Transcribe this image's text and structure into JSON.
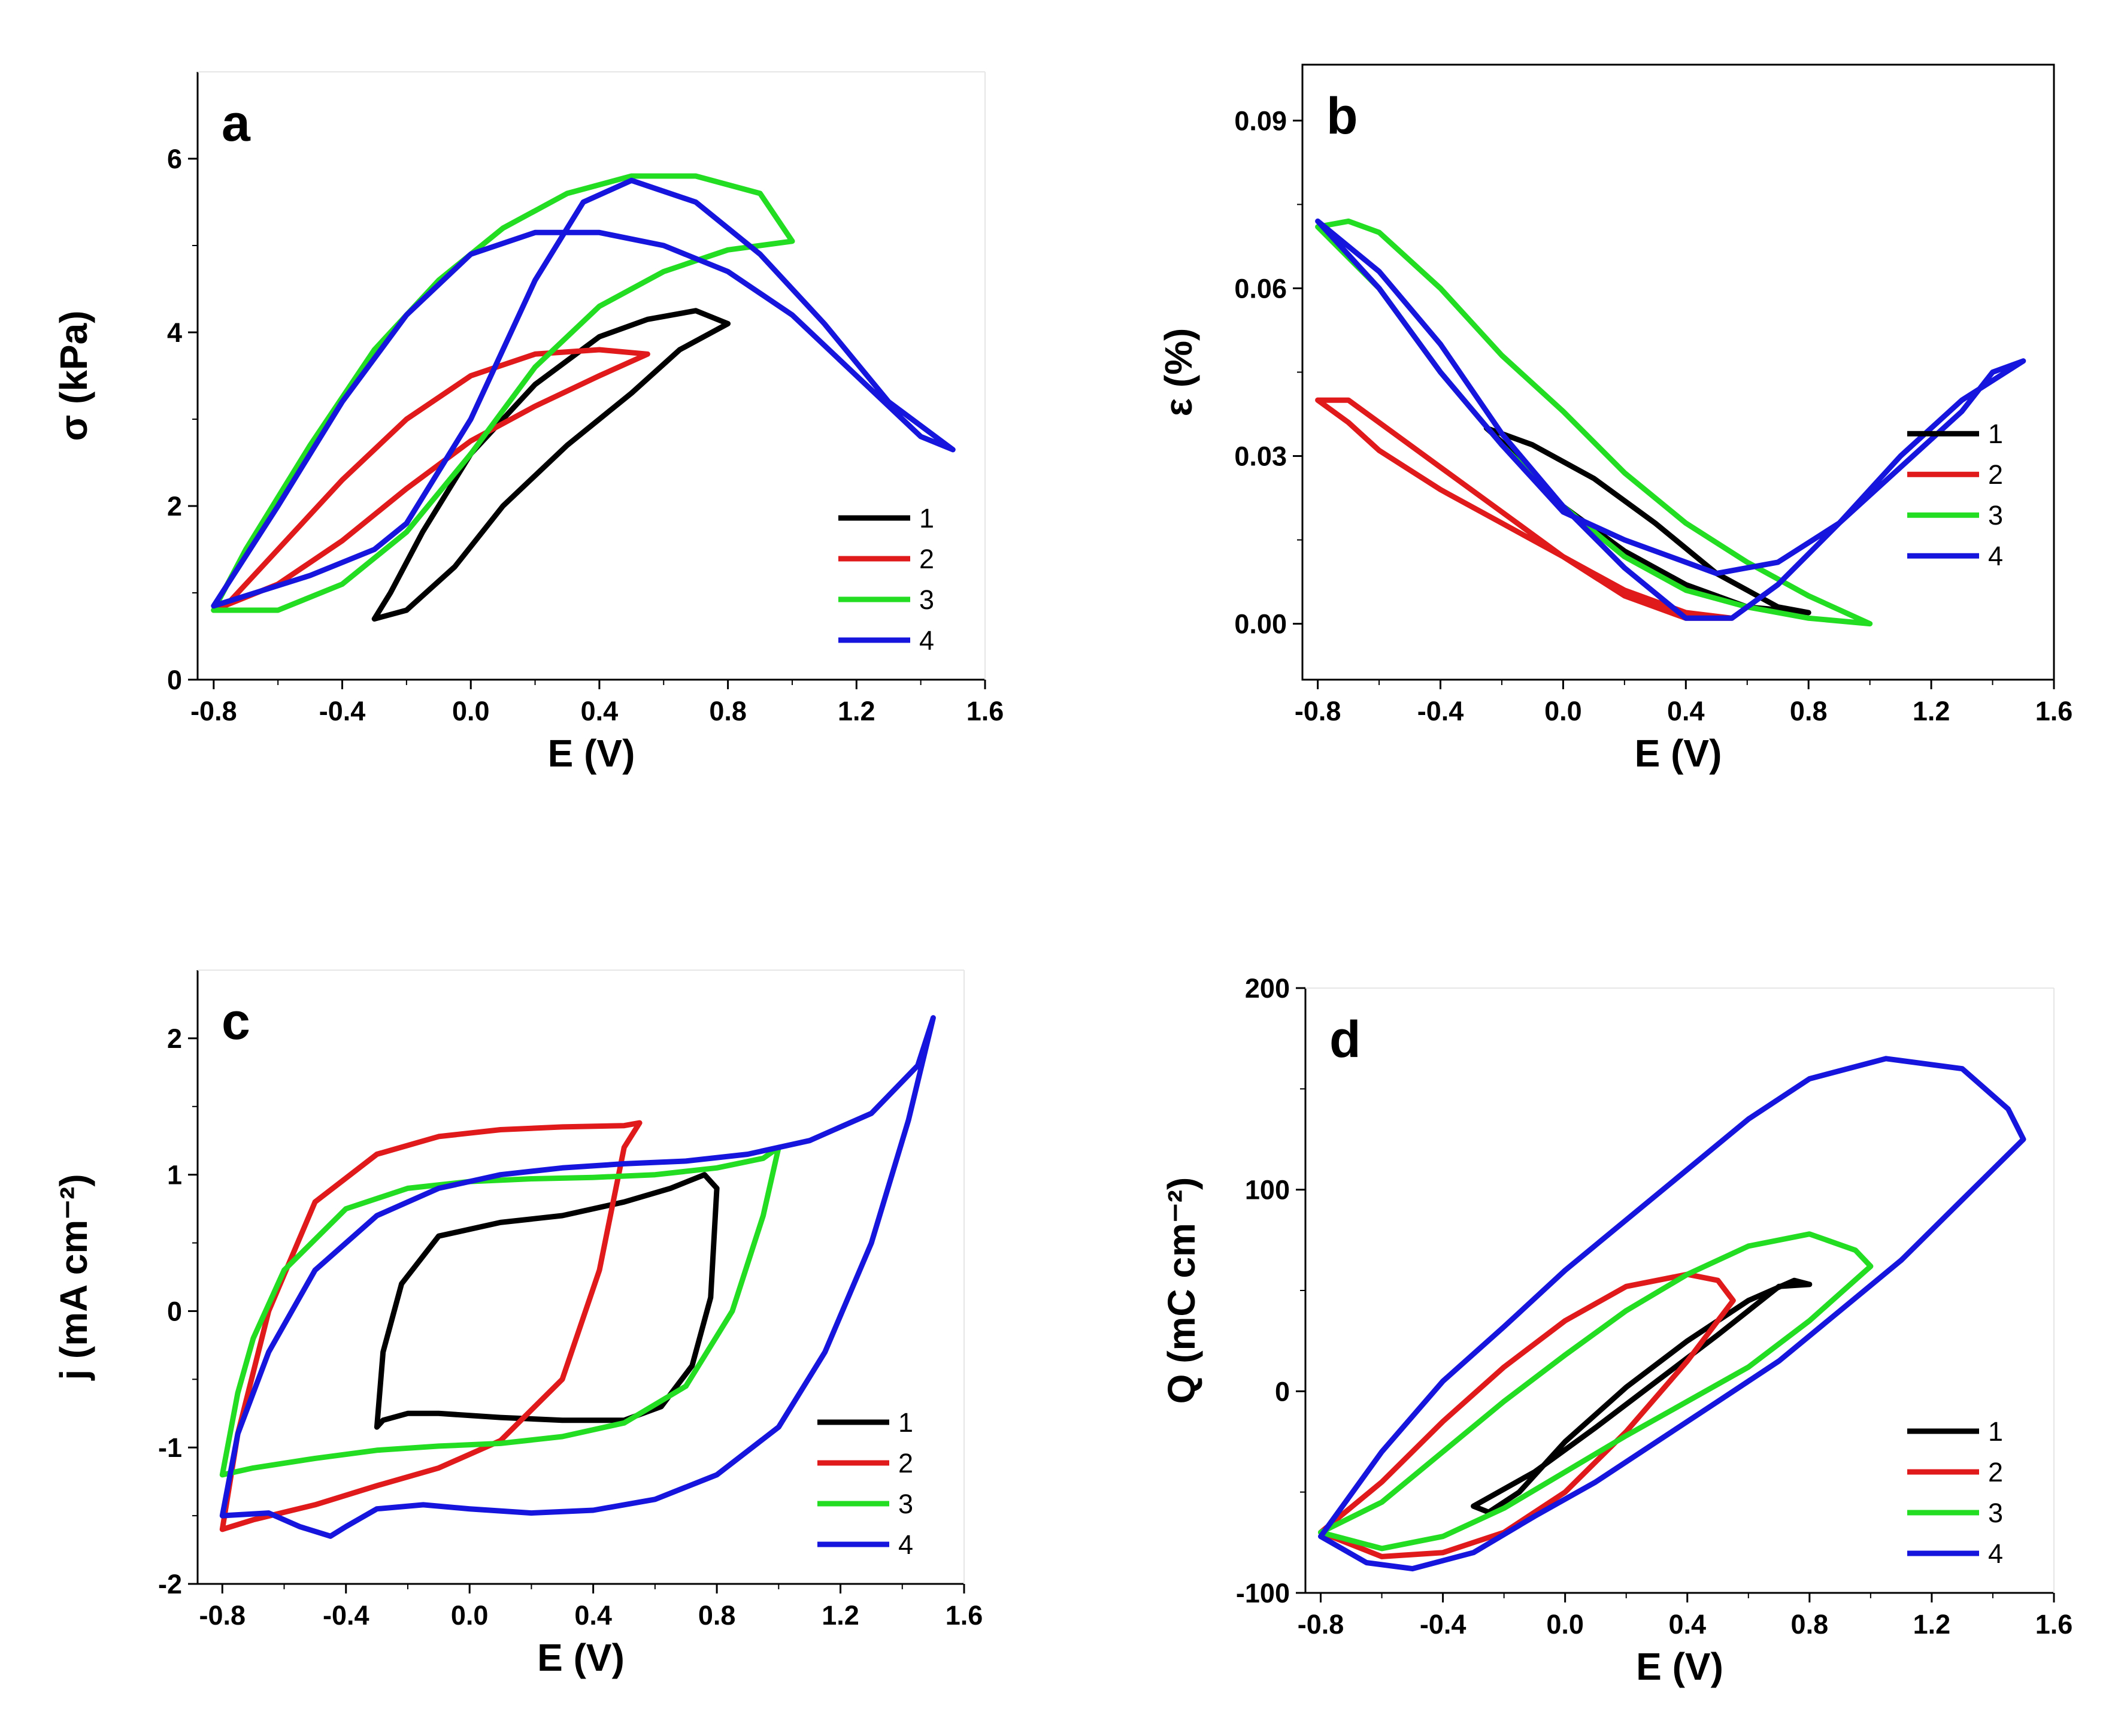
{
  "chart_data": [
    {
      "panel": "a",
      "type": "line",
      "xlabel": "E (V)",
      "ylabel": "σ (kPa)",
      "xlim": [
        -0.85,
        1.6
      ],
      "ylim": [
        0,
        7
      ],
      "xticks": [
        -0.8,
        -0.4,
        0.0,
        0.4,
        0.8,
        1.2,
        1.6
      ],
      "xtick_labels": [
        "-0.8",
        "-0.4",
        "0.0",
        "0.4",
        "0.8",
        "1.2",
        "1.6"
      ],
      "yticks": [
        0,
        2,
        4,
        6
      ],
      "ytick_labels": [
        "0",
        "2",
        "4",
        "6"
      ],
      "frame": "left-bottom",
      "legend": {
        "position": "bottom-right",
        "entries": [
          "1",
          "2",
          "3",
          "4"
        ]
      },
      "series": [
        {
          "name": "1",
          "color": "#000000",
          "x": [
            -0.3,
            -0.2,
            -0.05,
            0.1,
            0.3,
            0.5,
            0.65,
            0.8,
            0.7,
            0.55,
            0.4,
            0.2,
            0.0,
            -0.15,
            -0.25,
            -0.3
          ],
          "y": [
            0.7,
            0.8,
            1.3,
            2.0,
            2.7,
            3.3,
            3.8,
            4.1,
            4.25,
            4.15,
            3.95,
            3.4,
            2.6,
            1.7,
            1.0,
            0.7
          ]
        },
        {
          "name": "2",
          "color": "#e0191b",
          "x": [
            -0.8,
            -0.6,
            -0.4,
            -0.2,
            0.0,
            0.2,
            0.4,
            0.55,
            0.4,
            0.2,
            0.0,
            -0.2,
            -0.4,
            -0.6,
            -0.75,
            -0.8
          ],
          "y": [
            0.8,
            1.1,
            1.6,
            2.2,
            2.75,
            3.15,
            3.5,
            3.75,
            3.8,
            3.75,
            3.5,
            3.0,
            2.3,
            1.5,
            0.9,
            0.8
          ]
        },
        {
          "name": "3",
          "color": "#22dd22",
          "x": [
            -0.8,
            -0.6,
            -0.4,
            -0.2,
            0.0,
            0.2,
            0.4,
            0.6,
            0.8,
            1.0,
            0.9,
            0.7,
            0.5,
            0.3,
            0.1,
            -0.1,
            -0.3,
            -0.5,
            -0.7,
            -0.8
          ],
          "y": [
            0.8,
            0.8,
            1.1,
            1.7,
            2.6,
            3.6,
            4.3,
            4.7,
            4.95,
            5.05,
            5.6,
            5.8,
            5.8,
            5.6,
            5.2,
            4.6,
            3.8,
            2.7,
            1.5,
            0.8
          ]
        },
        {
          "name": "4",
          "color": "#1515dd",
          "x": [
            -0.8,
            -0.5,
            -0.3,
            -0.2,
            0.0,
            0.2,
            0.35,
            0.5,
            0.7,
            0.9,
            1.1,
            1.3,
            1.5,
            1.4,
            1.2,
            1.0,
            0.8,
            0.6,
            0.4,
            0.2,
            0.0,
            -0.2,
            -0.4,
            -0.6,
            -0.8
          ],
          "y": [
            0.85,
            1.2,
            1.5,
            1.8,
            3.0,
            4.6,
            5.5,
            5.75,
            5.5,
            4.9,
            4.1,
            3.2,
            2.65,
            2.8,
            3.5,
            4.2,
            4.7,
            5.0,
            5.15,
            5.15,
            4.9,
            4.2,
            3.2,
            2.0,
            0.85
          ]
        }
      ]
    },
    {
      "panel": "b",
      "type": "line",
      "xlabel": "E (V)",
      "ylabel": "ε (%)",
      "xlim": [
        -0.85,
        1.6
      ],
      "ylim": [
        -0.01,
        0.1
      ],
      "xticks": [
        -0.8,
        -0.4,
        0.0,
        0.4,
        0.8,
        1.2,
        1.6
      ],
      "xtick_labels": [
        "-0.8",
        "-0.4",
        "0.0",
        "0.4",
        "0.8",
        "1.2",
        "1.6"
      ],
      "yticks": [
        0.0,
        0.03,
        0.06,
        0.09
      ],
      "ytick_labels": [
        "0.00",
        "0.03",
        "0.06",
        "0.09"
      ],
      "frame": "box",
      "legend": {
        "position": "right",
        "entries": [
          "1",
          "2",
          "3",
          "4"
        ]
      },
      "series": [
        {
          "name": "1",
          "color": "#000000",
          "x": [
            -0.25,
            -0.1,
            0.1,
            0.3,
            0.5,
            0.7,
            0.8,
            0.6,
            0.4,
            0.2,
            0.0,
            -0.15,
            -0.25
          ],
          "y": [
            0.035,
            0.032,
            0.026,
            0.018,
            0.009,
            0.003,
            0.002,
            0.003,
            0.007,
            0.013,
            0.021,
            0.03,
            0.035
          ]
        },
        {
          "name": "2",
          "color": "#e0191b",
          "x": [
            -0.8,
            -0.7,
            -0.6,
            -0.4,
            -0.2,
            0.0,
            0.2,
            0.4,
            0.55,
            0.4,
            0.2,
            0.0,
            -0.2,
            -0.4,
            -0.6,
            -0.7,
            -0.8
          ],
          "y": [
            0.04,
            0.04,
            0.036,
            0.028,
            0.02,
            0.012,
            0.005,
            0.001,
            0.001,
            0.002,
            0.006,
            0.012,
            0.018,
            0.024,
            0.031,
            0.036,
            0.04
          ]
        },
        {
          "name": "3",
          "color": "#22dd22",
          "x": [
            -0.8,
            -0.6,
            -0.4,
            -0.2,
            0.0,
            0.2,
            0.4,
            0.6,
            0.8,
            1.0,
            0.8,
            0.6,
            0.4,
            0.2,
            0.0,
            -0.2,
            -0.4,
            -0.6,
            -0.7,
            -0.8
          ],
          "y": [
            0.071,
            0.06,
            0.045,
            0.032,
            0.021,
            0.012,
            0.006,
            0.003,
            0.001,
            0.0,
            0.005,
            0.011,
            0.018,
            0.027,
            0.038,
            0.048,
            0.06,
            0.07,
            0.072,
            0.071
          ]
        },
        {
          "name": "4",
          "color": "#1515dd",
          "x": [
            -0.8,
            -0.6,
            -0.4,
            -0.2,
            -0.1,
            0.0,
            0.2,
            0.4,
            0.5,
            0.7,
            0.9,
            1.1,
            1.3,
            1.4,
            1.5,
            1.3,
            1.1,
            0.9,
            0.7,
            0.55,
            0.4,
            0.2,
            0.0,
            -0.2,
            -0.4,
            -0.6,
            -0.8
          ],
          "y": [
            0.072,
            0.06,
            0.045,
            0.032,
            0.026,
            0.02,
            0.015,
            0.011,
            0.009,
            0.011,
            0.018,
            0.028,
            0.038,
            0.045,
            0.047,
            0.04,
            0.03,
            0.018,
            0.007,
            0.001,
            0.001,
            0.01,
            0.021,
            0.034,
            0.05,
            0.063,
            0.072
          ]
        }
      ]
    },
    {
      "panel": "c",
      "type": "line",
      "xlabel": "E (V)",
      "ylabel": "j (mA cm⁻²)",
      "xlim": [
        -0.88,
        1.6
      ],
      "ylim": [
        -2,
        2.5
      ],
      "xticks": [
        -0.8,
        -0.4,
        0.0,
        0.4,
        0.8,
        1.2,
        1.6
      ],
      "xtick_labels": [
        "-0.8",
        "-0.4",
        "0.0",
        "0.4",
        "0.8",
        "1.2",
        "1.6"
      ],
      "yticks": [
        -2,
        -1,
        0,
        1,
        2
      ],
      "ytick_labels": [
        "-2",
        "-1",
        "0",
        "1",
        "2"
      ],
      "frame": "left-bottom",
      "legend": {
        "position": "bottom-right",
        "entries": [
          "1",
          "2",
          "3",
          "4"
        ]
      },
      "series": [
        {
          "name": "1",
          "color": "#000000",
          "x": [
            -0.3,
            -0.28,
            -0.22,
            -0.1,
            0.1,
            0.3,
            0.5,
            0.65,
            0.76,
            0.8,
            0.78,
            0.72,
            0.62,
            0.5,
            0.3,
            0.1,
            -0.1,
            -0.2,
            -0.28,
            -0.3
          ],
          "y": [
            -0.85,
            -0.3,
            0.2,
            0.55,
            0.65,
            0.7,
            0.8,
            0.9,
            1.0,
            0.9,
            0.1,
            -0.4,
            -0.7,
            -0.8,
            -0.8,
            -0.78,
            -0.75,
            -0.75,
            -0.8,
            -0.85
          ]
        },
        {
          "name": "2",
          "color": "#e0191b",
          "x": [
            -0.8,
            -0.75,
            -0.65,
            -0.5,
            -0.3,
            -0.1,
            0.1,
            0.3,
            0.5,
            0.55,
            0.5,
            0.42,
            0.3,
            0.1,
            -0.1,
            -0.3,
            -0.5,
            -0.7,
            -0.8
          ],
          "y": [
            -1.6,
            -0.9,
            0.0,
            0.8,
            1.15,
            1.28,
            1.33,
            1.35,
            1.36,
            1.38,
            1.2,
            0.3,
            -0.5,
            -0.95,
            -1.15,
            -1.28,
            -1.42,
            -1.53,
            -1.6
          ]
        },
        {
          "name": "3",
          "color": "#22dd22",
          "x": [
            -0.8,
            -0.75,
            -0.7,
            -0.6,
            -0.4,
            -0.2,
            0.0,
            0.2,
            0.4,
            0.6,
            0.8,
            0.95,
            1.0,
            0.95,
            0.85,
            0.7,
            0.5,
            0.3,
            0.1,
            -0.1,
            -0.3,
            -0.5,
            -0.7,
            -0.8
          ],
          "y": [
            -1.2,
            -0.6,
            -0.2,
            0.3,
            0.75,
            0.9,
            0.95,
            0.97,
            0.98,
            1.0,
            1.05,
            1.12,
            1.2,
            0.7,
            0.0,
            -0.55,
            -0.82,
            -0.92,
            -0.97,
            -0.99,
            -1.02,
            -1.08,
            -1.15,
            -1.2
          ]
        },
        {
          "name": "4",
          "color": "#1515dd",
          "x": [
            -0.8,
            -0.75,
            -0.65,
            -0.5,
            -0.3,
            -0.1,
            0.1,
            0.3,
            0.5,
            0.7,
            0.9,
            1.1,
            1.3,
            1.45,
            1.5,
            1.42,
            1.3,
            1.15,
            1.0,
            0.8,
            0.6,
            0.4,
            0.2,
            0.0,
            -0.15,
            -0.3,
            -0.4,
            -0.45,
            -0.55,
            -0.65,
            -0.8
          ],
          "y": [
            -1.5,
            -0.9,
            -0.3,
            0.3,
            0.7,
            0.9,
            1.0,
            1.05,
            1.08,
            1.1,
            1.15,
            1.25,
            1.45,
            1.8,
            2.15,
            1.4,
            0.5,
            -0.3,
            -0.85,
            -1.2,
            -1.38,
            -1.46,
            -1.48,
            -1.45,
            -1.42,
            -1.45,
            -1.58,
            -1.65,
            -1.58,
            -1.48,
            -1.5
          ]
        }
      ]
    },
    {
      "panel": "d",
      "type": "line",
      "xlabel": "E (V)",
      "ylabel": "Q (mC cm⁻²)",
      "xlim": [
        -0.85,
        1.6
      ],
      "ylim": [
        -100,
        200
      ],
      "xticks": [
        -0.8,
        -0.4,
        0.0,
        0.4,
        0.8,
        1.2,
        1.6
      ],
      "xtick_labels": [
        "-0.8",
        "-0.4",
        "0.0",
        "0.4",
        "0.8",
        "1.2",
        "1.6"
      ],
      "yticks": [
        -100,
        0,
        100,
        200
      ],
      "ytick_labels": [
        "-100",
        "0",
        "100",
        "200"
      ],
      "frame": "left-bottom",
      "legend": {
        "position": "bottom-right",
        "entries": [
          "1",
          "2",
          "3",
          "4"
        ]
      },
      "series": [
        {
          "name": "1",
          "color": "#000000",
          "x": [
            -0.3,
            -0.1,
            0.1,
            0.3,
            0.5,
            0.7,
            0.8,
            0.75,
            0.6,
            0.4,
            0.2,
            0.0,
            -0.15,
            -0.25,
            -0.3
          ],
          "y": [
            -57,
            -40,
            -18,
            5,
            28,
            52,
            53,
            55,
            45,
            25,
            2,
            -25,
            -50,
            -60,
            -57
          ]
        },
        {
          "name": "2",
          "color": "#e0191b",
          "x": [
            -0.8,
            -0.6,
            -0.4,
            -0.2,
            0.0,
            0.2,
            0.4,
            0.55,
            0.5,
            0.4,
            0.2,
            0.0,
            -0.2,
            -0.4,
            -0.6,
            -0.8
          ],
          "y": [
            -70,
            -82,
            -80,
            -70,
            -50,
            -20,
            15,
            45,
            55,
            58,
            52,
            35,
            12,
            -15,
            -45,
            -70
          ]
        },
        {
          "name": "3",
          "color": "#22dd22",
          "x": [
            -0.8,
            -0.6,
            -0.4,
            -0.2,
            0.0,
            0.2,
            0.4,
            0.6,
            0.8,
            1.0,
            0.95,
            0.8,
            0.6,
            0.4,
            0.2,
            0.0,
            -0.2,
            -0.4,
            -0.6,
            -0.8
          ],
          "y": [
            -70,
            -78,
            -72,
            -58,
            -40,
            -22,
            -5,
            12,
            35,
            62,
            70,
            78,
            72,
            58,
            40,
            18,
            -5,
            -30,
            -55,
            -70
          ]
        },
        {
          "name": "4",
          "color": "#1515dd",
          "x": [
            -0.8,
            -0.65,
            -0.5,
            -0.3,
            -0.1,
            0.1,
            0.3,
            0.5,
            0.7,
            0.9,
            1.1,
            1.3,
            1.5,
            1.45,
            1.3,
            1.05,
            0.8,
            0.6,
            0.4,
            0.2,
            0.0,
            -0.2,
            -0.4,
            -0.6,
            -0.8
          ],
          "y": [
            -72,
            -85,
            -88,
            -80,
            -62,
            -45,
            -25,
            -5,
            15,
            40,
            65,
            95,
            125,
            140,
            160,
            165,
            155,
            135,
            110,
            85,
            60,
            32,
            5,
            -30,
            -72
          ]
        }
      ]
    }
  ]
}
